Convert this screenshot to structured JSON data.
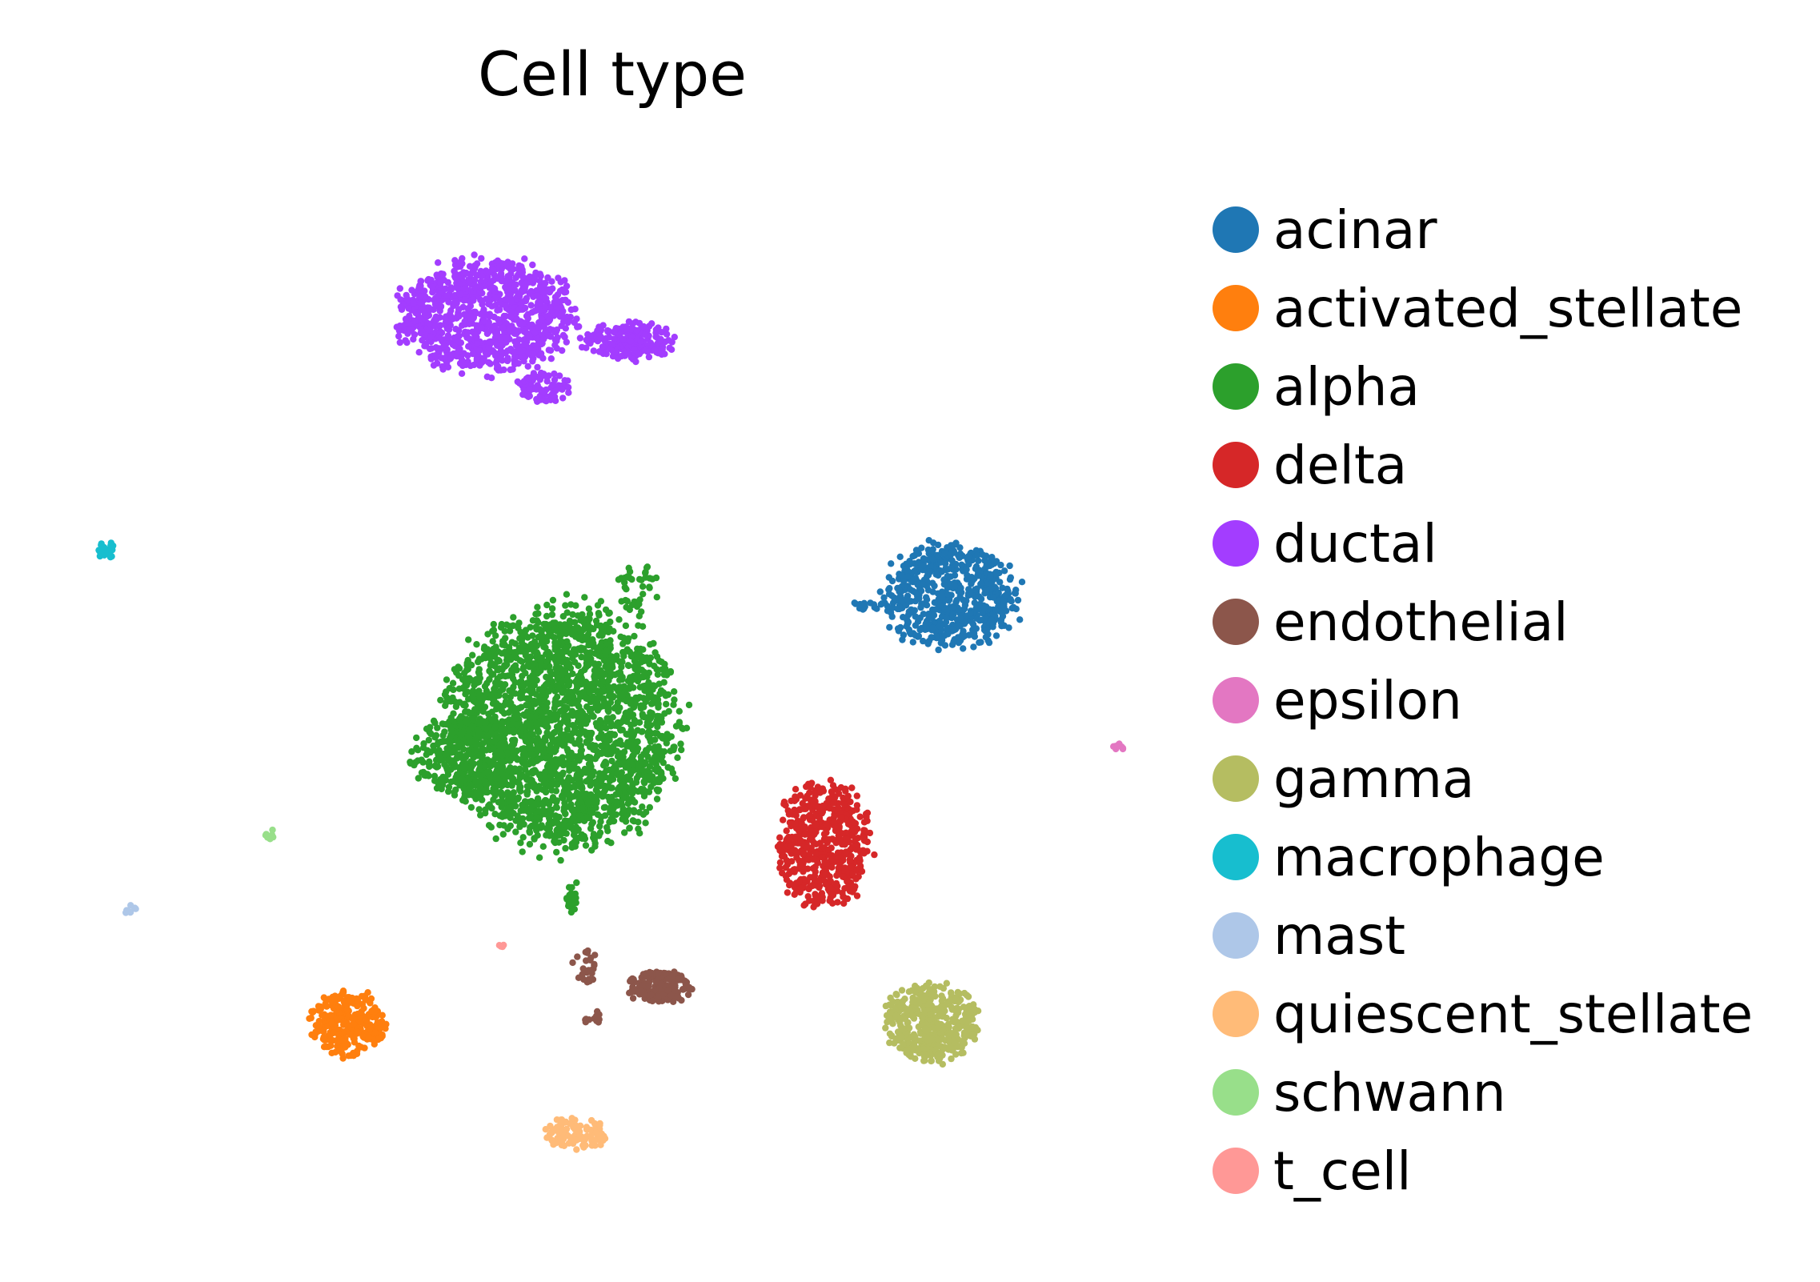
{
  "chart_data": {
    "type": "scatter",
    "title": "Cell type",
    "xlabel": "",
    "ylabel": "",
    "axes_visible": false,
    "grid": false,
    "legend_position": "right",
    "xlim": [
      0,
      100
    ],
    "ylim": [
      0,
      100
    ],
    "series": [
      {
        "name": "acinar",
        "color": "#1f77b4",
        "clusters": [
          {
            "cx": 83.5,
            "cy": 59.5,
            "rx": 6.5,
            "ry": 5.0,
            "n": 620
          },
          {
            "cx": 75.5,
            "cy": 58.5,
            "rx": 2.0,
            "ry": 0.4,
            "n": 15
          }
        ]
      },
      {
        "name": "activated_stellate",
        "color": "#ff7f0e",
        "clusters": [
          {
            "cx": 24.5,
            "cy": 17.5,
            "rx": 3.5,
            "ry": 3.2,
            "n": 260
          },
          {
            "cx": 27.2,
            "cy": 16.5,
            "rx": 1.2,
            "ry": 0.7,
            "n": 25
          }
        ]
      },
      {
        "name": "alpha",
        "color": "#2ca02c",
        "clusters": [
          {
            "cx": 45.5,
            "cy": 46.5,
            "rx": 11.0,
            "ry": 11.5,
            "n": 2400
          },
          {
            "cx": 36.0,
            "cy": 43.5,
            "rx": 5.0,
            "ry": 4.0,
            "n": 300
          },
          {
            "cx": 53.0,
            "cy": 60.0,
            "rx": 2.0,
            "ry": 2.5,
            "n": 40
          },
          {
            "cx": 46.5,
            "cy": 30.0,
            "rx": 0.6,
            "ry": 1.6,
            "n": 20
          }
        ]
      },
      {
        "name": "delta",
        "color": "#d62728",
        "clusters": [
          {
            "cx": 71.0,
            "cy": 35.0,
            "rx": 4.5,
            "ry": 6.0,
            "n": 520
          }
        ]
      },
      {
        "name": "ductal",
        "color": "#a33dff",
        "clusters": [
          {
            "cx": 38.0,
            "cy": 87.0,
            "rx": 8.5,
            "ry": 5.5,
            "n": 1000
          },
          {
            "cx": 52.0,
            "cy": 84.5,
            "rx": 4.5,
            "ry": 1.8,
            "n": 220
          },
          {
            "cx": 43.5,
            "cy": 80.0,
            "rx": 2.5,
            "ry": 1.5,
            "n": 80
          }
        ]
      },
      {
        "name": "endothelial",
        "color": "#8c564b",
        "clusters": [
          {
            "cx": 55.0,
            "cy": 21.0,
            "rx": 3.0,
            "ry": 1.6,
            "n": 180
          },
          {
            "cx": 47.8,
            "cy": 23.0,
            "rx": 1.2,
            "ry": 1.6,
            "n": 25
          },
          {
            "cx": 48.5,
            "cy": 18.0,
            "rx": 1.2,
            "ry": 0.6,
            "n": 12
          }
        ]
      },
      {
        "name": "epsilon",
        "color": "#e377c2",
        "clusters": [
          {
            "cx": 99.8,
            "cy": 44.5,
            "rx": 0.6,
            "ry": 0.5,
            "n": 10
          }
        ]
      },
      {
        "name": "gamma",
        "color": "#b5bd61",
        "clusters": [
          {
            "cx": 81.5,
            "cy": 17.5,
            "rx": 4.5,
            "ry": 3.8,
            "n": 420
          }
        ]
      },
      {
        "name": "macrophage",
        "color": "#17becf",
        "clusters": [
          {
            "cx": 1.0,
            "cy": 64.0,
            "rx": 0.9,
            "ry": 0.8,
            "n": 28
          }
        ]
      },
      {
        "name": "mast",
        "color": "#aec7e8",
        "clusters": [
          {
            "cx": 3.5,
            "cy": 28.5,
            "rx": 0.7,
            "ry": 0.6,
            "n": 10
          }
        ]
      },
      {
        "name": "quiescent_stellate",
        "color": "#ffbb78",
        "clusters": [
          {
            "cx": 47.0,
            "cy": 6.5,
            "rx": 3.0,
            "ry": 1.6,
            "n": 110
          }
        ]
      },
      {
        "name": "schwann",
        "color": "#98df8a",
        "clusters": [
          {
            "cx": 17.0,
            "cy": 36.0,
            "rx": 0.6,
            "ry": 0.5,
            "n": 8
          }
        ]
      },
      {
        "name": "t_cell",
        "color": "#ff9896",
        "clusters": [
          {
            "cx": 39.5,
            "cy": 25.0,
            "rx": 0.4,
            "ry": 0.3,
            "n": 4
          }
        ]
      }
    ]
  }
}
